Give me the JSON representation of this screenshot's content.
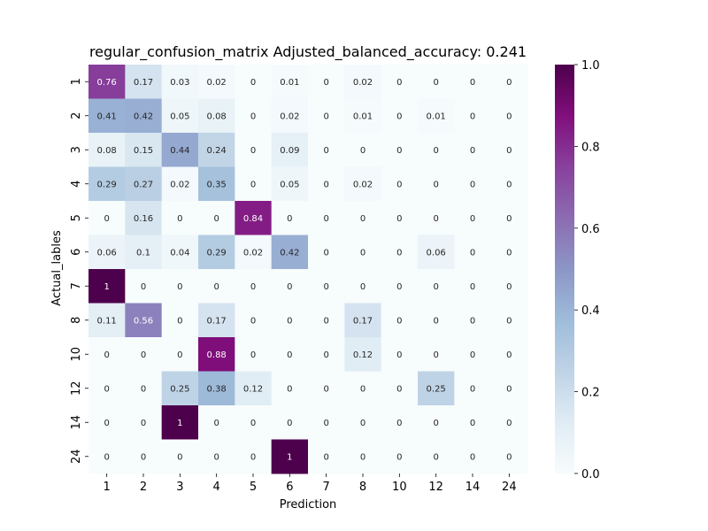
{
  "chart_data": {
    "type": "heatmap",
    "title": "regular_confusion_matrix Adjusted_balanced_accuracy: 0.241",
    "xlabel": "Prediction",
    "ylabel": "Actual_lables",
    "x_categories": [
      "1",
      "2",
      "3",
      "4",
      "5",
      "6",
      "7",
      "8",
      "10",
      "12",
      "14",
      "24"
    ],
    "y_categories": [
      "1",
      "2",
      "3",
      "4",
      "5",
      "6",
      "7",
      "8",
      "10",
      "12",
      "14",
      "24"
    ],
    "values": [
      [
        0.76,
        0.17,
        0.03,
        0.02,
        0,
        0.01,
        0,
        0.02,
        0,
        0,
        0,
        0
      ],
      [
        0.41,
        0.42,
        0.05,
        0.08,
        0,
        0.02,
        0,
        0.01,
        0,
        0.01,
        0,
        0
      ],
      [
        0.08,
        0.15,
        0.44,
        0.24,
        0,
        0.09,
        0,
        0,
        0,
        0,
        0,
        0
      ],
      [
        0.29,
        0.27,
        0.02,
        0.35,
        0,
        0.05,
        0,
        0.02,
        0,
        0,
        0,
        0
      ],
      [
        0,
        0.16,
        0,
        0,
        0.84,
        0,
        0,
        0,
        0,
        0,
        0,
        0
      ],
      [
        0.06,
        0.1,
        0.04,
        0.29,
        0.02,
        0.42,
        0,
        0,
        0,
        0.06,
        0,
        0
      ],
      [
        1,
        0,
        0,
        0,
        0,
        0,
        0,
        0,
        0,
        0,
        0,
        0
      ],
      [
        0.11,
        0.56,
        0,
        0.17,
        0,
        0,
        0,
        0.17,
        0,
        0,
        0,
        0
      ],
      [
        0,
        0,
        0,
        0.88,
        0,
        0,
        0,
        0.12,
        0,
        0,
        0,
        0
      ],
      [
        0,
        0,
        0.25,
        0.38,
        0.12,
        0,
        0,
        0,
        0,
        0.25,
        0,
        0
      ],
      [
        0,
        0,
        1,
        0,
        0,
        0,
        0,
        0,
        0,
        0,
        0,
        0
      ],
      [
        0,
        0,
        0,
        0,
        0,
        1,
        0,
        0,
        0,
        0,
        0,
        0
      ]
    ],
    "colormap": "BuPu",
    "vmin": 0,
    "vmax": 1,
    "colorbar_ticks": [
      "0.0",
      "0.2",
      "0.4",
      "0.6",
      "0.8",
      "1.0"
    ],
    "colorbar_tick_values": [
      0,
      0.2,
      0.4,
      0.6,
      0.8,
      1.0
    ]
  }
}
